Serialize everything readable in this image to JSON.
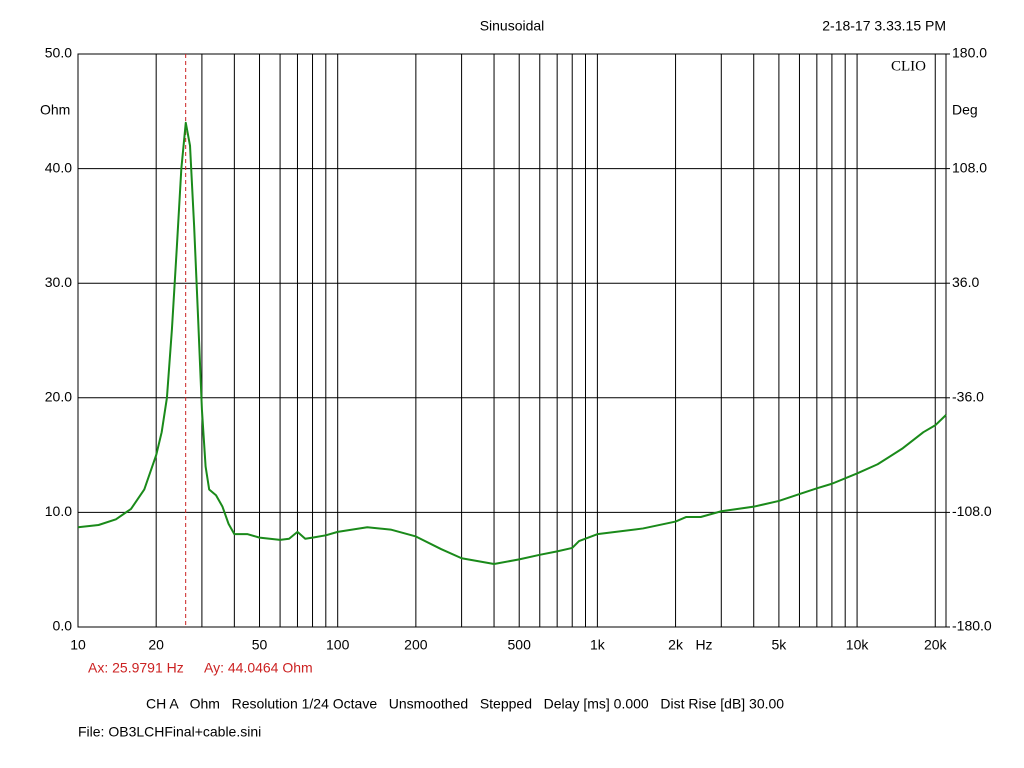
{
  "chart_data": {
    "type": "line",
    "title": "Sinusoidal",
    "timestamp": "2-18-17 3.33.15 PM",
    "brand": "CLIO",
    "x_label": "Hz",
    "y_label": "Ohm",
    "y2_label": "Deg",
    "log_x": true,
    "grid": true,
    "xlim": [
      10,
      22000
    ],
    "xticks": [
      10,
      20,
      50,
      100,
      200,
      500,
      {
        "value": 1000,
        "label": "1k"
      },
      {
        "value": 2000,
        "label": "2k"
      },
      {
        "value": 5000,
        "label": "5k"
      },
      {
        "value": 10000,
        "label": "10k"
      },
      {
        "value": 20000,
        "label": "20k"
      }
    ],
    "xminor": [
      30,
      40,
      60,
      70,
      80,
      90,
      300,
      400,
      600,
      700,
      800,
      900,
      3000,
      4000,
      6000,
      7000,
      8000,
      9000
    ],
    "ylim": [
      0,
      50
    ],
    "yticks": [
      {
        "value": 0,
        "label": "0.0"
      },
      {
        "value": 10,
        "label": "10.0"
      },
      {
        "value": 20,
        "label": "20.0"
      },
      {
        "value": 30,
        "label": "30.0"
      },
      {
        "value": 40,
        "label": "40.0"
      },
      {
        "value": 50,
        "label": "50.0"
      }
    ],
    "y2lim": [
      -180,
      180
    ],
    "y2ticks": [
      {
        "value": -180,
        "label": "-180.0"
      },
      {
        "value": -108,
        "label": "-108.0"
      },
      {
        "value": -36,
        "label": "-36.0"
      },
      {
        "value": 36,
        "label": "36.0"
      },
      {
        "value": 108,
        "label": "108.0"
      },
      {
        "value": 180,
        "label": "180.0"
      }
    ],
    "x": [
      10,
      12,
      14,
      16,
      18,
      20,
      21,
      22,
      23,
      24,
      25,
      26,
      27,
      28,
      29,
      30,
      31,
      32,
      34,
      36,
      38,
      40,
      45,
      50,
      60,
      65,
      70,
      75,
      80,
      90,
      100,
      130,
      160,
      200,
      250,
      300,
      400,
      500,
      600,
      700,
      800,
      850,
      1000,
      1500,
      2000,
      2200,
      2500,
      3000,
      4000,
      5000,
      6000,
      7000,
      8000,
      10000,
      12000,
      15000,
      18000,
      20000,
      22000
    ],
    "series": [
      {
        "name": "CH A",
        "color": "#1a8a1a",
        "values": [
          8.7,
          8.9,
          9.4,
          10.3,
          12.0,
          15.0,
          17,
          20,
          26,
          33,
          40,
          44.0,
          42,
          35,
          27,
          19,
          14,
          12,
          11.5,
          10.5,
          9,
          8.1,
          8.1,
          7.8,
          7.6,
          7.7,
          8.3,
          7.7,
          7.8,
          8.0,
          8.3,
          8.7,
          8.5,
          7.9,
          6.8,
          6.0,
          5.5,
          5.9,
          6.3,
          6.6,
          6.9,
          7.5,
          8.1,
          8.6,
          9.2,
          9.6,
          9.6,
          10.1,
          10.5,
          11.0,
          11.6,
          12.1,
          12.5,
          13.4,
          14.2,
          15.6,
          17.0,
          17.6,
          18.5
        ]
      }
    ],
    "cursor": {
      "x": 25.9791,
      "color": "#cc2222",
      "label_x": "Ax: 25.9791 Hz",
      "label_y": "Ay: 44.0464 Ohm"
    },
    "settings": "CH A   Ohm   Resolution 1/24 Octave   Unsmoothed   Stepped   Delay [ms] 0.000   Dist Rise [dB] 30.00",
    "file": "File: OB3LCHFinal+cable.sini"
  }
}
